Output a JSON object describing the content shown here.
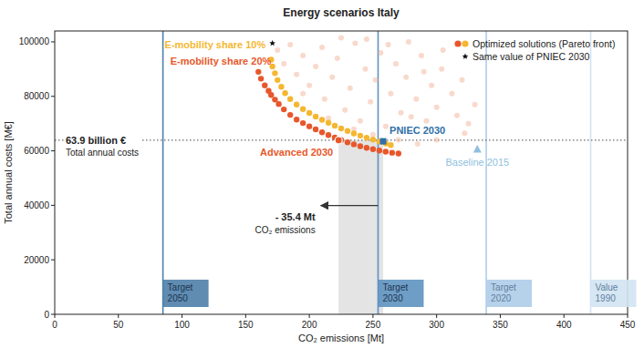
{
  "chart_data": {
    "type": "scatter",
    "title": "Energy scenarios Italy",
    "x_label": "CO₂ emissions [Mt]",
    "y_label": "Total annual costs [M€]",
    "xlim": [
      0,
      450
    ],
    "xticks": [
      0,
      50,
      100,
      150,
      200,
      250,
      300,
      350,
      400,
      450
    ],
    "ylim": [
      0,
      104000
    ],
    "yticks": [
      0,
      20000,
      40000,
      60000,
      80000,
      100000
    ],
    "grid": false,
    "legend": "upper right",
    "legend_label": "Optimized solutions (Pareto front)",
    "series": [
      {
        "color": "#f4b49a",
        "marker": "circle",
        "x": [
          175,
          180,
          185,
          190,
          195,
          200,
          205,
          210,
          212,
          218,
          222,
          228,
          232,
          236,
          240,
          244,
          248,
          252,
          256,
          260,
          264,
          268,
          272,
          276,
          280,
          284,
          288,
          292,
          296,
          300,
          304,
          322,
          312,
          316,
          320,
          325,
          330,
          195,
          215,
          235,
          250,
          270,
          285,
          300,
          245,
          225,
          262,
          278,
          290,
          305
        ],
        "values": [
          97000,
          92000,
          99000,
          88000,
          95000,
          84000,
          91000,
          98000,
          79000,
          87000,
          94000,
          75000,
          83000,
          99500,
          71000,
          90000,
          78000,
          86000,
          96000,
          69000,
          81000,
          92000,
          74000,
          87000,
          72500,
          79000,
          95000,
          71000,
          84000,
          76000,
          90000,
          66500,
          81000,
          73000,
          86000,
          70000,
          77000,
          81000,
          72000,
          68000,
          66000,
          64000,
          62500,
          64000,
          101000,
          101500,
          99000,
          100000,
          89000,
          97000
        ]
      },
      {
        "name": "E-mobility share 10%",
        "color": "#f5b731",
        "marker": "circle",
        "x": [
          170,
          171,
          173,
          175,
          178,
          181,
          185,
          190,
          195,
          200,
          205,
          210,
          215,
          220,
          225,
          230,
          235,
          240,
          245,
          250,
          255,
          260,
          264
        ],
        "values": [
          93500,
          91000,
          88500,
          86000,
          83500,
          81200,
          79000,
          77000,
          75300,
          73900,
          72600,
          71400,
          70300,
          69200,
          68200,
          67300,
          66400,
          65600,
          64800,
          64100,
          63400,
          62700,
          62100
        ]
      },
      {
        "name": "E-mobility share 20%",
        "color": "#e8572b",
        "marker": "circle",
        "x": [
          160,
          162,
          165,
          168,
          170,
          173,
          176,
          180,
          185,
          190,
          195,
          200,
          205,
          210,
          215,
          220,
          225,
          230,
          235,
          240,
          245,
          250,
          255,
          260,
          265,
          270
        ],
        "values": [
          89000,
          86500,
          84000,
          82000,
          80500,
          78800,
          77200,
          75200,
          73200,
          71500,
          70200,
          69000,
          67900,
          66800,
          65800,
          64900,
          64000,
          63100,
          62400,
          61700,
          61100,
          60600,
          60100,
          59700,
          59300,
          59000
        ]
      },
      {
        "name": "PNIEC 2030",
        "color": "#2f6fa8",
        "marker": "square",
        "x": [
          258
        ],
        "values": [
          63500
        ]
      },
      {
        "name": "Baseline 2015",
        "color": "#8fbfe0",
        "marker": "triangle",
        "x": [
          332
        ],
        "values": [
          60500
        ]
      },
      {
        "name": "Advanced 2030",
        "color": "#e8572b",
        "marker": "circle",
        "x": [
          223
        ],
        "values": [
          63900
        ]
      },
      {
        "name": "Same value of PNIEC 2030",
        "color": "#111111",
        "marker": "star",
        "x": [
          171
        ],
        "values": [
          99500
        ]
      }
    ],
    "hline": {
      "value": 63900,
      "label": "63.9 billion €",
      "sublabel": "Total annual costs",
      "line_style": "dotted"
    },
    "band": {
      "x": [
        223,
        258
      ],
      "ylim": [
        0,
        63900
      ],
      "color": "#e4e4e4"
    },
    "arrow": {
      "x": [
        254,
        209
      ],
      "y": 39900,
      "label": "- 35.4 Mt",
      "sublabel": "CO₂ emissions"
    },
    "reference_lines": [
      {
        "label": "Target 2050",
        "value": 85,
        "color": "#4f80aa"
      },
      {
        "label": "Target 2030",
        "value": 254,
        "color": "#5e92c0"
      },
      {
        "label": "Target 2020",
        "value": 339,
        "color": "#aecde9"
      },
      {
        "label": "Value 1990",
        "value": 421,
        "color": "#d2e3f2"
      }
    ]
  }
}
